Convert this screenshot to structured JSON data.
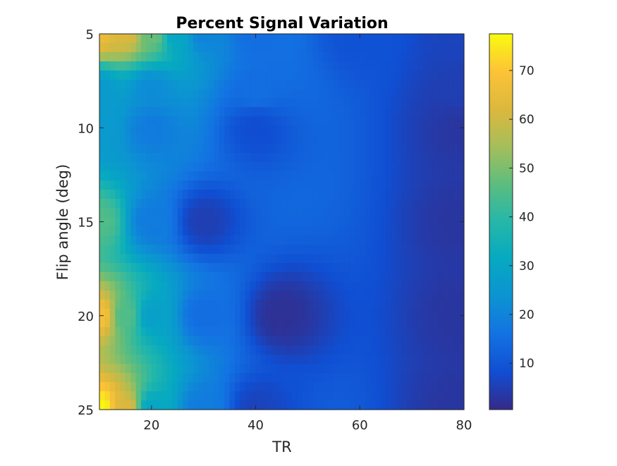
{
  "chart_data": {
    "type": "heatmap",
    "title": "Percent Signal Variation",
    "xlabel": "TR",
    "ylabel": "Flip angle (deg)",
    "x_range": [
      10,
      80
    ],
    "y_range": [
      5,
      25
    ],
    "y_direction": "reversed",
    "x_ticks": [
      20,
      40,
      60,
      80
    ],
    "y_ticks": [
      5,
      10,
      15,
      20,
      25
    ],
    "colorbar": {
      "colormap": "parula",
      "range": [
        0.5,
        77.5
      ],
      "ticks": [
        10,
        20,
        30,
        40,
        50,
        60,
        70
      ],
      "location": "right"
    },
    "grid": false,
    "z_samples": {
      "description_points": [
        {
          "tr": 10,
          "flip": 5,
          "value": 65
        },
        {
          "tr": 15,
          "flip": 5,
          "value": 62
        },
        {
          "tr": 20,
          "flip": 5,
          "value": 48
        },
        {
          "tr": 25,
          "flip": 5,
          "value": 30
        },
        {
          "tr": 30,
          "flip": 5,
          "value": 20
        },
        {
          "tr": 40,
          "flip": 5,
          "value": 15
        },
        {
          "tr": 60,
          "flip": 5,
          "value": 9
        },
        {
          "tr": 80,
          "flip": 5,
          "value": 6
        },
        {
          "tr": 10,
          "flip": 8,
          "value": 26
        },
        {
          "tr": 20,
          "flip": 8,
          "value": 22
        },
        {
          "tr": 40,
          "flip": 8,
          "value": 15
        },
        {
          "tr": 80,
          "flip": 8,
          "value": 5
        },
        {
          "tr": 10,
          "flip": 10,
          "value": 26
        },
        {
          "tr": 20,
          "flip": 10,
          "value": 18
        },
        {
          "tr": 40,
          "flip": 10,
          "value": 8
        },
        {
          "tr": 80,
          "flip": 10,
          "value": 3
        },
        {
          "tr": 10,
          "flip": 15,
          "value": 45
        },
        {
          "tr": 20,
          "flip": 15,
          "value": 18
        },
        {
          "tr": 30,
          "flip": 15,
          "value": 5
        },
        {
          "tr": 80,
          "flip": 15,
          "value": 3
        },
        {
          "tr": 10,
          "flip": 20,
          "value": 68
        },
        {
          "tr": 15,
          "flip": 20,
          "value": 45
        },
        {
          "tr": 20,
          "flip": 20,
          "value": 28
        },
        {
          "tr": 30,
          "flip": 20,
          "value": 15
        },
        {
          "tr": 45,
          "flip": 20,
          "value": 2
        },
        {
          "tr": 80,
          "flip": 20,
          "value": 3
        },
        {
          "tr": 10,
          "flip": 25,
          "value": 77
        },
        {
          "tr": 15,
          "flip": 25,
          "value": 62
        },
        {
          "tr": 20,
          "flip": 25,
          "value": 30
        },
        {
          "tr": 30,
          "flip": 25,
          "value": 18
        },
        {
          "tr": 40,
          "flip": 25,
          "value": 6
        },
        {
          "tr": 80,
          "flip": 25,
          "value": 3
        }
      ]
    }
  }
}
